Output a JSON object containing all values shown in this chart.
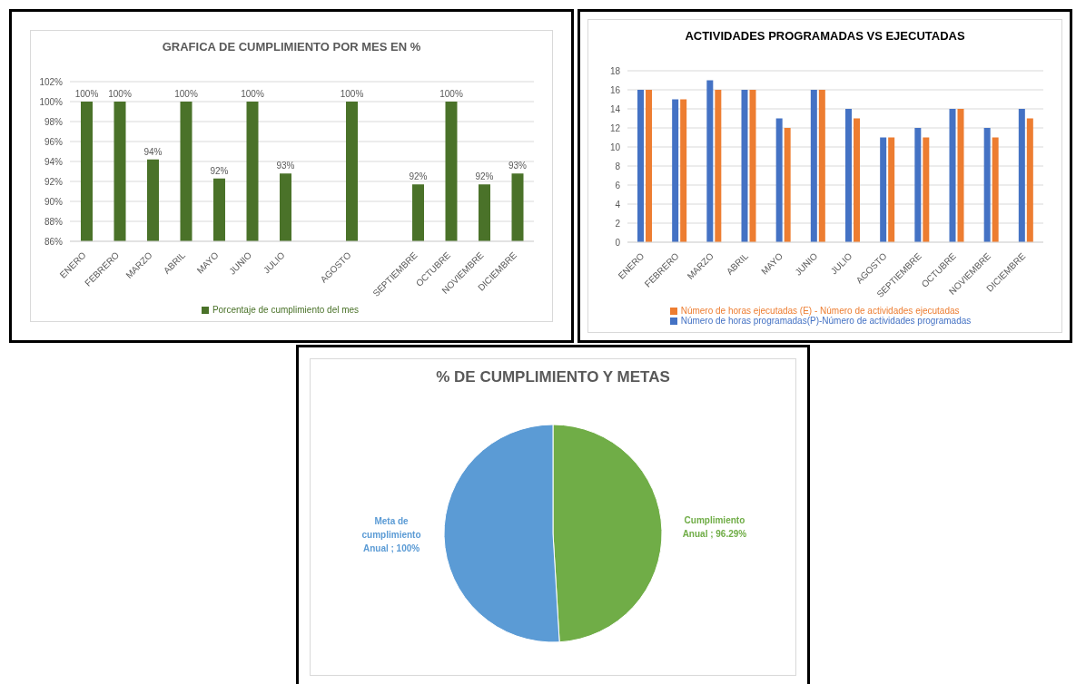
{
  "chart_data": [
    {
      "type": "bar",
      "title": "GRAFICA DE CUMPLIMIENTO POR MES EN %",
      "categories": [
        "ENERO",
        "FEBRERO",
        "MARZO",
        "ABRIL",
        "MAYO",
        "JUNIO",
        "JULIO",
        null,
        "AGOSTO",
        null,
        "SEPTIEMBRE",
        "OCTUBRE",
        "NOVIEMBRE",
        "DICIEMBRE"
      ],
      "series": [
        {
          "name": "Porcentaje de cumplimiento del mes",
          "color": "#4a7229",
          "values": [
            100,
            100,
            94.2,
            100,
            92.3,
            100,
            92.8,
            null,
            100,
            null,
            91.7,
            100,
            91.7,
            92.8
          ],
          "value_labels": [
            "100%",
            "100%",
            "94%",
            "100%",
            "92%",
            "100%",
            "93%",
            null,
            "100%",
            null,
            "92%",
            "100%",
            "92%",
            "93%"
          ]
        }
      ],
      "ylim": [
        86,
        102
      ],
      "yticks": [
        {
          "value": 86,
          "label": "86%"
        },
        {
          "value": 88,
          "label": "88%"
        },
        {
          "value": 90,
          "label": "90%"
        },
        {
          "value": 92,
          "label": "92%"
        },
        {
          "value": 94,
          "label": "94%"
        },
        {
          "value": 96,
          "label": "96%"
        },
        {
          "value": 98,
          "label": "98%"
        },
        {
          "value": 100,
          "label": "100%"
        },
        {
          "value": 102,
          "label": "102%"
        }
      ],
      "grid": "y",
      "legend": "bottom"
    },
    {
      "type": "bar",
      "title": "ACTIVIDADES PROGRAMADAS VS EJECUTADAS",
      "categories": [
        "ENERO",
        "FEBRERO",
        "MARZO",
        "ABRIL",
        "MAYO",
        "JUNIO",
        "JULIO",
        "AGOSTO",
        "SEPTIEMBRE",
        "OCTUBRE",
        "NOVIEMBRE",
        "DICIEMBRE"
      ],
      "series": [
        {
          "name": "Número de horas programadas(P)-Número de actividades programadas",
          "color": "#4472c4",
          "values": [
            16,
            15,
            17,
            16,
            13,
            16,
            14,
            11,
            12,
            14,
            12,
            14
          ]
        },
        {
          "name": "Número de horas ejecutadas (E) - Número de actividades ejecutadas",
          "color": "#ed7d31",
          "values": [
            16,
            15,
            16,
            16,
            12,
            16,
            13,
            11,
            11,
            14,
            11,
            13
          ]
        }
      ],
      "ylim": [
        0,
        18
      ],
      "yticks": [
        0,
        2,
        4,
        6,
        8,
        10,
        12,
        14,
        16,
        18
      ],
      "grid": "y",
      "legend": "bottom"
    },
    {
      "type": "pie",
      "title": "% DE CUMPLIMIENTO Y METAS",
      "categories": [
        "Cumplimiento Anual",
        "Meta de cumplimiento Anual"
      ],
      "values": [
        96.29,
        100
      ],
      "value_labels": [
        "96.29%",
        "100%"
      ],
      "colors": [
        "#70ad47",
        "#5b9bd5"
      ],
      "legend": false
    }
  ]
}
